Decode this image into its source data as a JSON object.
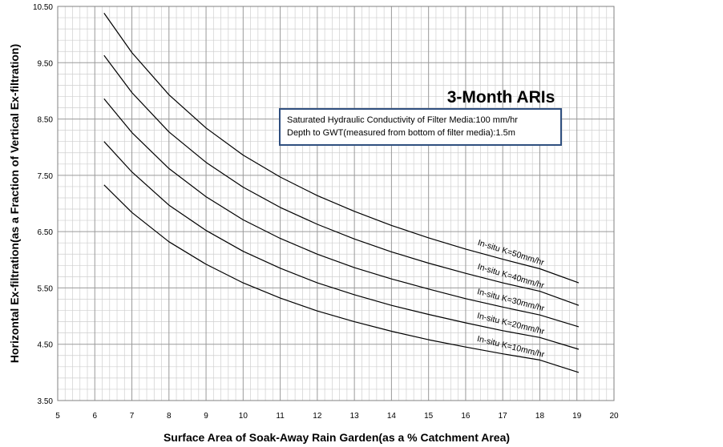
{
  "chart_data": {
    "type": "line",
    "title": "3-Month ARIs",
    "xlabel": "Surface Area of Soak-Away Rain Garden(as a %  Catchment Area)",
    "ylabel": "Horizontal Ex-filtration(as a Fraction of Vertical Ex-filtration)",
    "xlim": [
      5,
      20
    ],
    "ylim": [
      3.5,
      10.5
    ],
    "x_ticks": [
      "5",
      "6",
      "7",
      "8",
      "9",
      "10",
      "11",
      "12",
      "13",
      "14",
      "15",
      "16",
      "17",
      "18",
      "19",
      "20"
    ],
    "y_ticks": [
      "3.50",
      "4.50",
      "5.50",
      "6.50",
      "7.50",
      "8.50",
      "9.50",
      "10.50"
    ],
    "grid": true,
    "annotation": {
      "line1": "Saturated Hydraulic Conductivity of Filter Media:100 mm/hr",
      "line2": "Depth to GWT(measured from bottom of filter media):1.5m"
    },
    "series": [
      {
        "name": "In-situ K=50mm/hr",
        "x": [
          6.25,
          7,
          8,
          9,
          10,
          11,
          12,
          13,
          14,
          15,
          16,
          17,
          18,
          19.05
        ],
        "y": [
          10.38,
          9.68,
          8.93,
          8.34,
          7.86,
          7.47,
          7.14,
          6.86,
          6.61,
          6.39,
          6.19,
          6.01,
          5.84,
          5.59
        ]
      },
      {
        "name": "In-situ K=40mm/hr",
        "x": [
          6.25,
          7,
          8,
          9,
          10,
          11,
          12,
          13,
          14,
          15,
          16,
          17,
          18,
          19.05
        ],
        "y": [
          9.63,
          8.97,
          8.27,
          7.73,
          7.29,
          6.93,
          6.63,
          6.37,
          6.14,
          5.94,
          5.76,
          5.59,
          5.44,
          5.19
        ]
      },
      {
        "name": "In-situ K=30mm/hr",
        "x": [
          6.25,
          7,
          8,
          9,
          10,
          11,
          12,
          13,
          14,
          15,
          16,
          17,
          18,
          19.05
        ],
        "y": [
          8.86,
          8.26,
          7.62,
          7.12,
          6.71,
          6.38,
          6.1,
          5.86,
          5.66,
          5.48,
          5.31,
          5.16,
          5.02,
          4.81
        ]
      },
      {
        "name": "In-situ K=20mm/hr",
        "x": [
          6.25,
          7,
          8,
          9,
          10,
          11,
          12,
          13,
          14,
          15,
          16,
          17,
          18,
          19.05
        ],
        "y": [
          8.1,
          7.56,
          6.97,
          6.52,
          6.15,
          5.85,
          5.59,
          5.38,
          5.19,
          5.03,
          4.88,
          4.74,
          4.62,
          4.41
        ]
      },
      {
        "name": "In-situ K=10mm/hr",
        "x": [
          6.25,
          7,
          8,
          9,
          10,
          11,
          12,
          13,
          14,
          15,
          16,
          17,
          18,
          19.05
        ],
        "y": [
          7.33,
          6.84,
          6.32,
          5.92,
          5.59,
          5.32,
          5.09,
          4.9,
          4.73,
          4.58,
          4.45,
          4.33,
          4.22,
          4.0
        ]
      }
    ]
  }
}
